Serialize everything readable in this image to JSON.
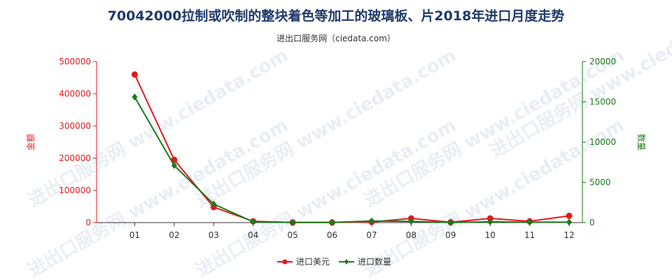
{
  "title": "70042000拉制或吹制的整块着色等加工的玻璃板、片2018年进口月度走势",
  "subtitle": "进出口服务网（ciedata.com）",
  "watermark": "进出口服务网 www.ciedata.com",
  "colors": {
    "left_axis": "#e31a1c",
    "right_axis": "#1a7a1a",
    "series_amount": "#e31a1c",
    "series_quantity": "#1a7a1a"
  },
  "chart_data": {
    "type": "line",
    "categories": [
      "01",
      "02",
      "03",
      "04",
      "05",
      "06",
      "07",
      "08",
      "09",
      "10",
      "11",
      "12"
    ],
    "ylabel": "金额",
    "y2label": "数量",
    "ylim": [
      0,
      500000
    ],
    "y2lim": [
      0,
      20000
    ],
    "yticks": [
      "0",
      "100000",
      "200000",
      "300000",
      "400000",
      "500000"
    ],
    "y2ticks": [
      "0",
      "5000",
      "10000",
      "15000",
      "20000"
    ],
    "legend_position": "bottom",
    "grid": false,
    "series": [
      {
        "name": "进口美元",
        "axis": "left",
        "values": [
          460000,
          195000,
          48000,
          4000,
          500,
          500,
          2000,
          13000,
          1000,
          13000,
          4000,
          21000
        ]
      },
      {
        "name": "进口数量",
        "axis": "right",
        "values": [
          15600,
          7100,
          2300,
          100,
          20,
          20,
          200,
          150,
          20,
          100,
          50,
          50
        ]
      }
    ]
  }
}
